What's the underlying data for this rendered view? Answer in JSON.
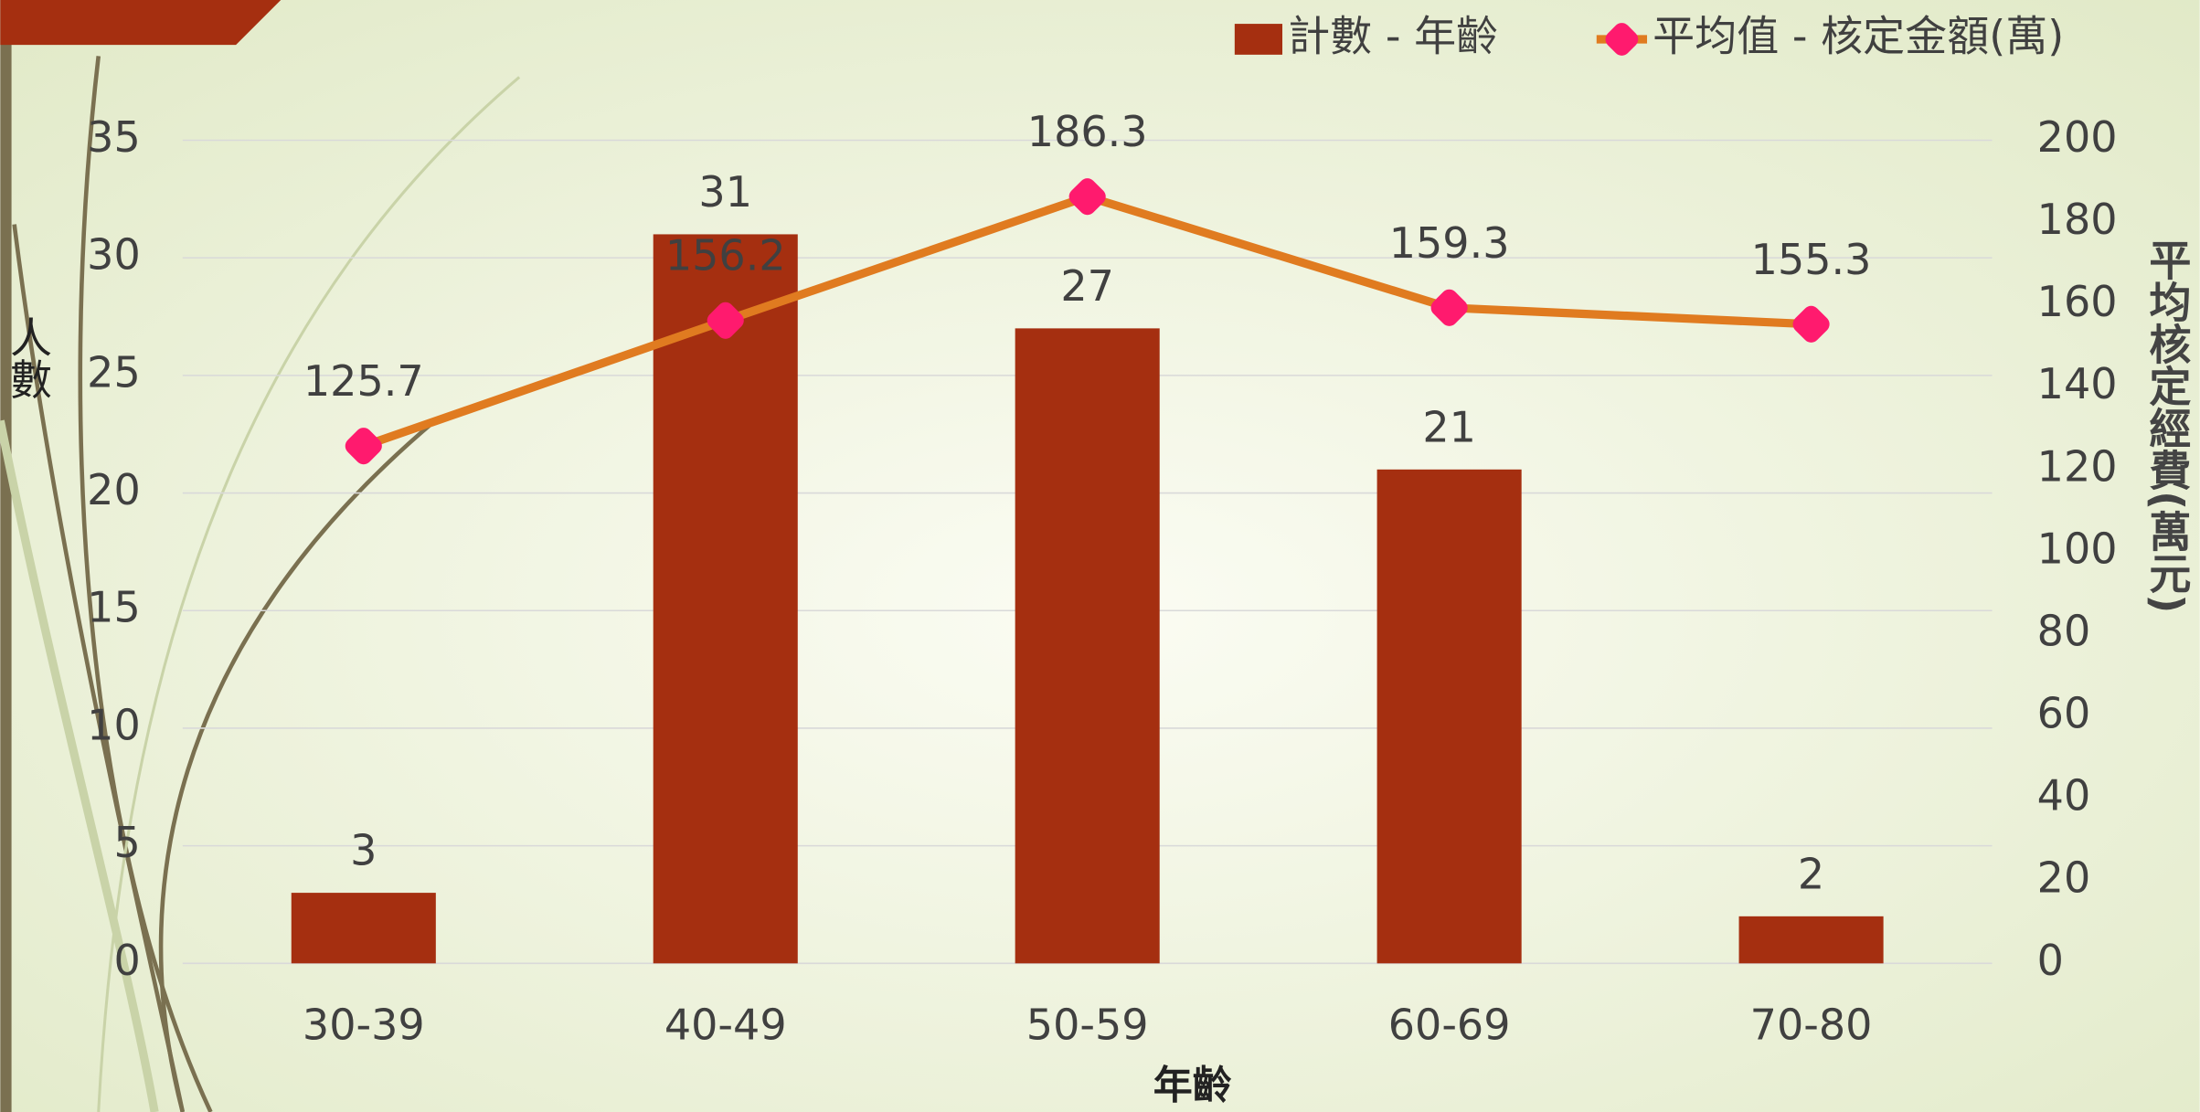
{
  "chart_data": {
    "type": "bar",
    "categories": [
      "30-39",
      "40-49",
      "50-59",
      "60-69",
      "70-80"
    ],
    "series": [
      {
        "name": "計數 - 年齡",
        "color": "#a52f10",
        "values": [
          3,
          31,
          27,
          21,
          2
        ]
      },
      {
        "name": "平均值 - 核定金額(萬)",
        "type": "line",
        "axis": "y2",
        "color": "#e07b20",
        "marker_color": "#ff1a6e",
        "values": [
          125.7,
          156.2,
          186.3,
          159.3,
          155.3
        ]
      }
    ],
    "x_label": "年齡",
    "y_label": "人數",
    "y2_label": "平均核定經費(萬元)",
    "ylim": [
      0,
      35
    ],
    "yticks": [
      0,
      5,
      10,
      15,
      20,
      25,
      30,
      35
    ],
    "y2lim": [
      0,
      200
    ],
    "y2ticks": [
      0,
      20,
      40,
      60,
      80,
      100,
      120,
      140,
      160,
      180,
      200
    ],
    "grid": true,
    "legend": "top-right"
  }
}
